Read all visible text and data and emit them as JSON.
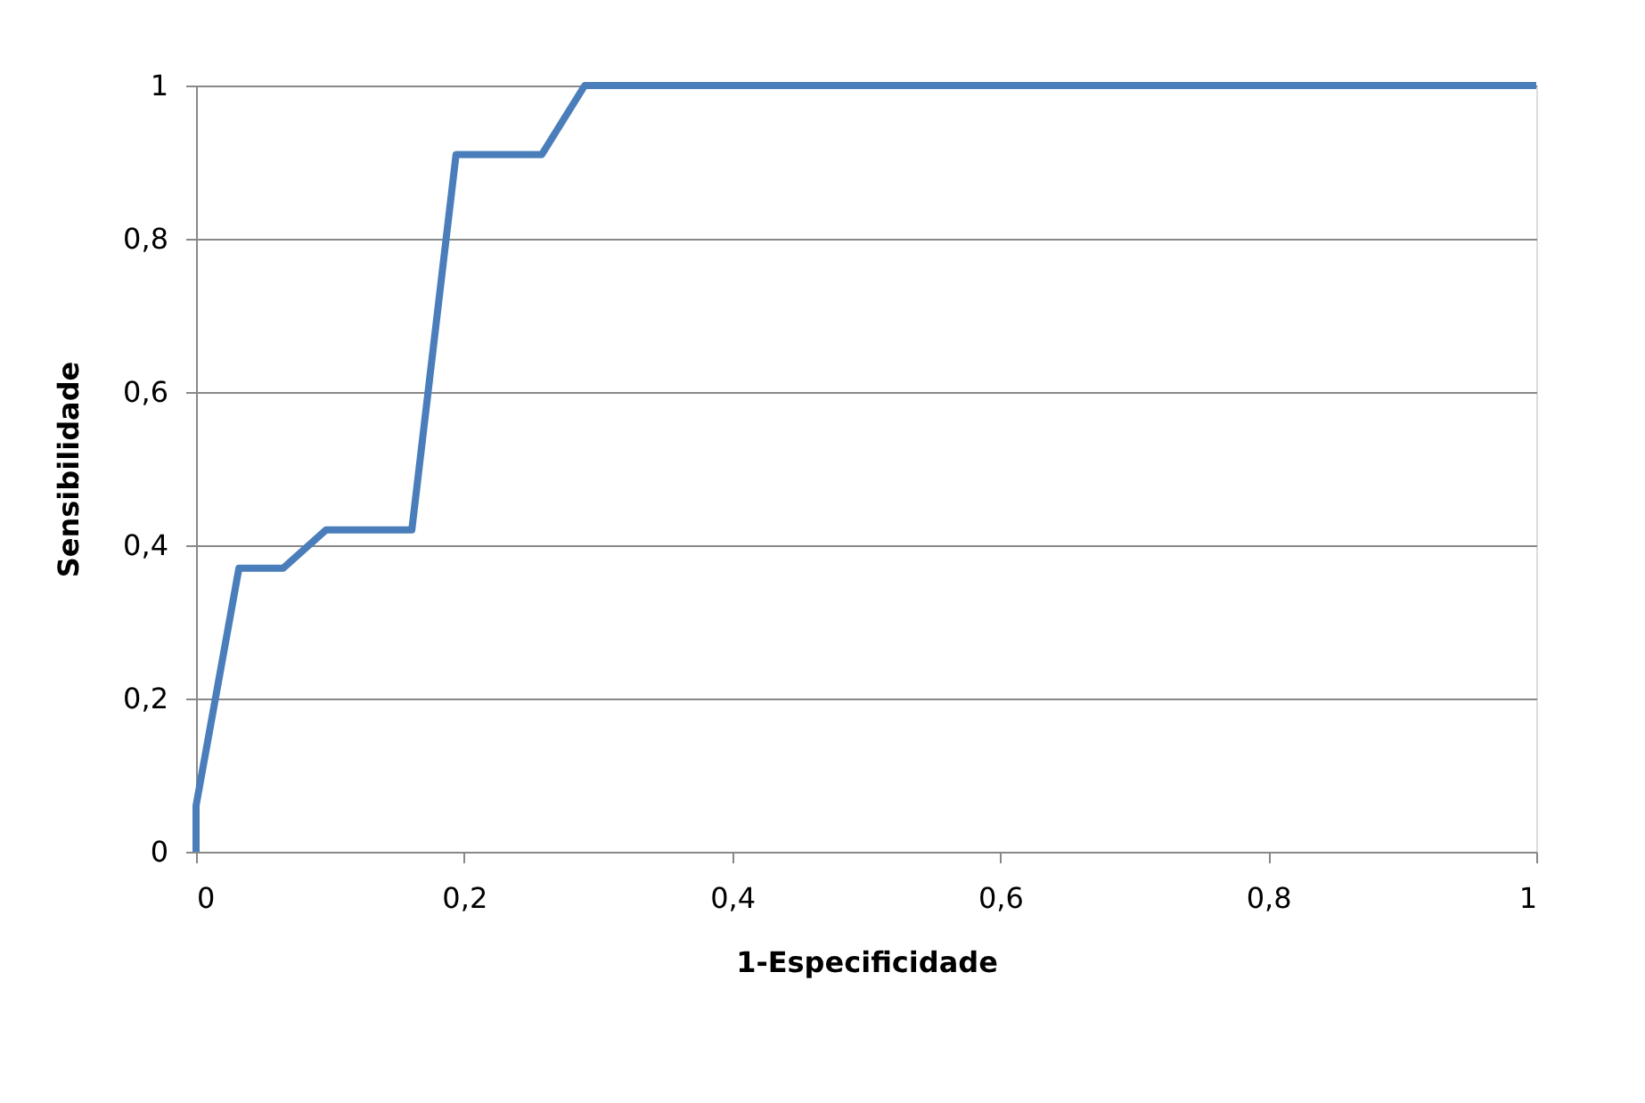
{
  "chart_data": {
    "type": "line",
    "xlabel": "1-Especificidade",
    "ylabel": "Sensibilidade",
    "x": [
      0,
      0,
      0.032,
      0.065,
      0.097,
      0.161,
      0.194,
      0.258,
      0.29,
      1
    ],
    "series": [
      {
        "color": "#4a7ebb",
        "values": [
          0,
          0.06,
          0.37,
          0.37,
          0.42,
          0.42,
          0.91,
          0.91,
          1,
          1
        ]
      }
    ],
    "xlim": [
      0,
      1
    ],
    "ylim": [
      0,
      1
    ],
    "xticks": [
      0,
      {
        "value": 0.2,
        "label": "0,2"
      },
      {
        "value": 0.4,
        "label": "0,4"
      },
      {
        "value": 0.6,
        "label": "0,6"
      },
      {
        "value": 0.8,
        "label": "0,8"
      },
      1
    ],
    "yticks": [
      0,
      {
        "value": 0.2,
        "label": "0,2"
      },
      {
        "value": 0.4,
        "label": "0,4"
      },
      {
        "value": 0.6,
        "label": "0,6"
      },
      {
        "value": 0.8,
        "label": "0,8"
      },
      1
    ],
    "grid": "y",
    "marker": "none",
    "line_style": "solid"
  }
}
